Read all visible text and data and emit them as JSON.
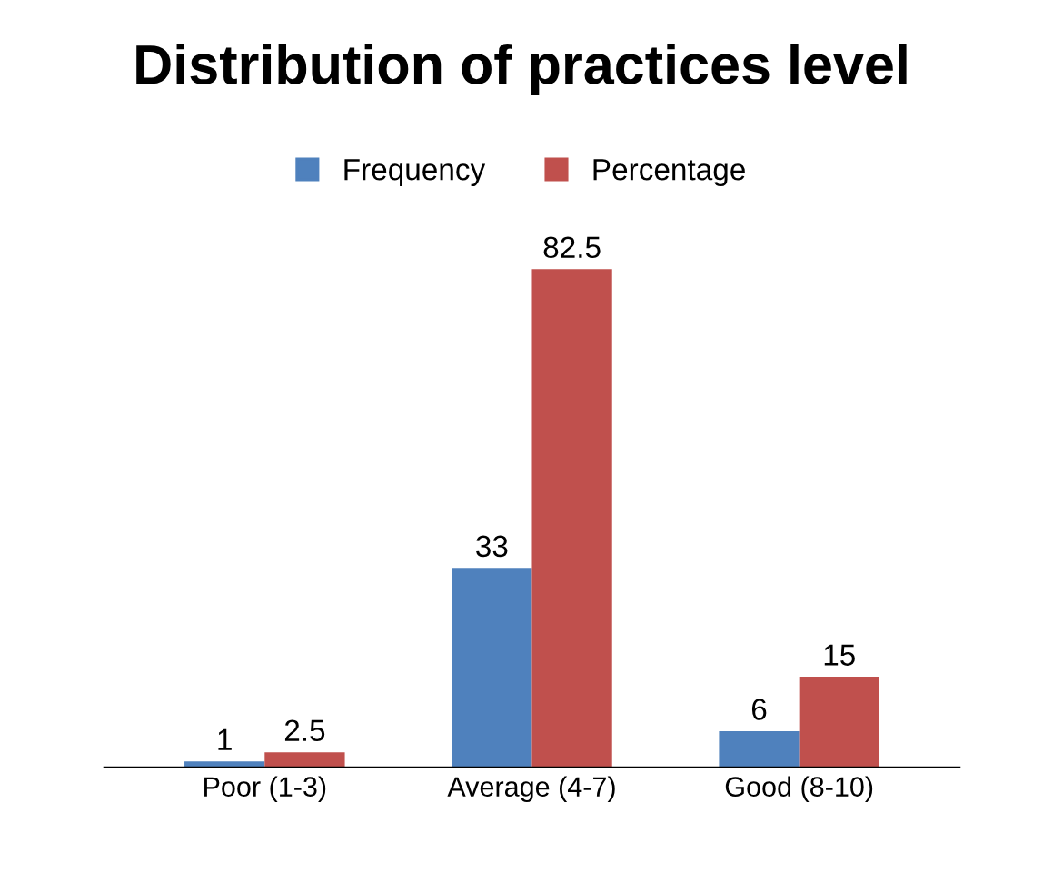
{
  "chart_data": {
    "type": "bar",
    "title": "Distribution of practices level",
    "categories": [
      "Poor (1-3)",
      "Average (4-7)",
      "Good (8-10)"
    ],
    "series": [
      {
        "name": "Frequency",
        "color": "#4f81bd",
        "values": [
          1,
          33,
          6
        ]
      },
      {
        "name": "Percentage",
        "color": "#c0504d",
        "values": [
          2.5,
          82.5,
          15
        ]
      }
    ],
    "data_labels": true,
    "legend": "top",
    "grid": false
  }
}
